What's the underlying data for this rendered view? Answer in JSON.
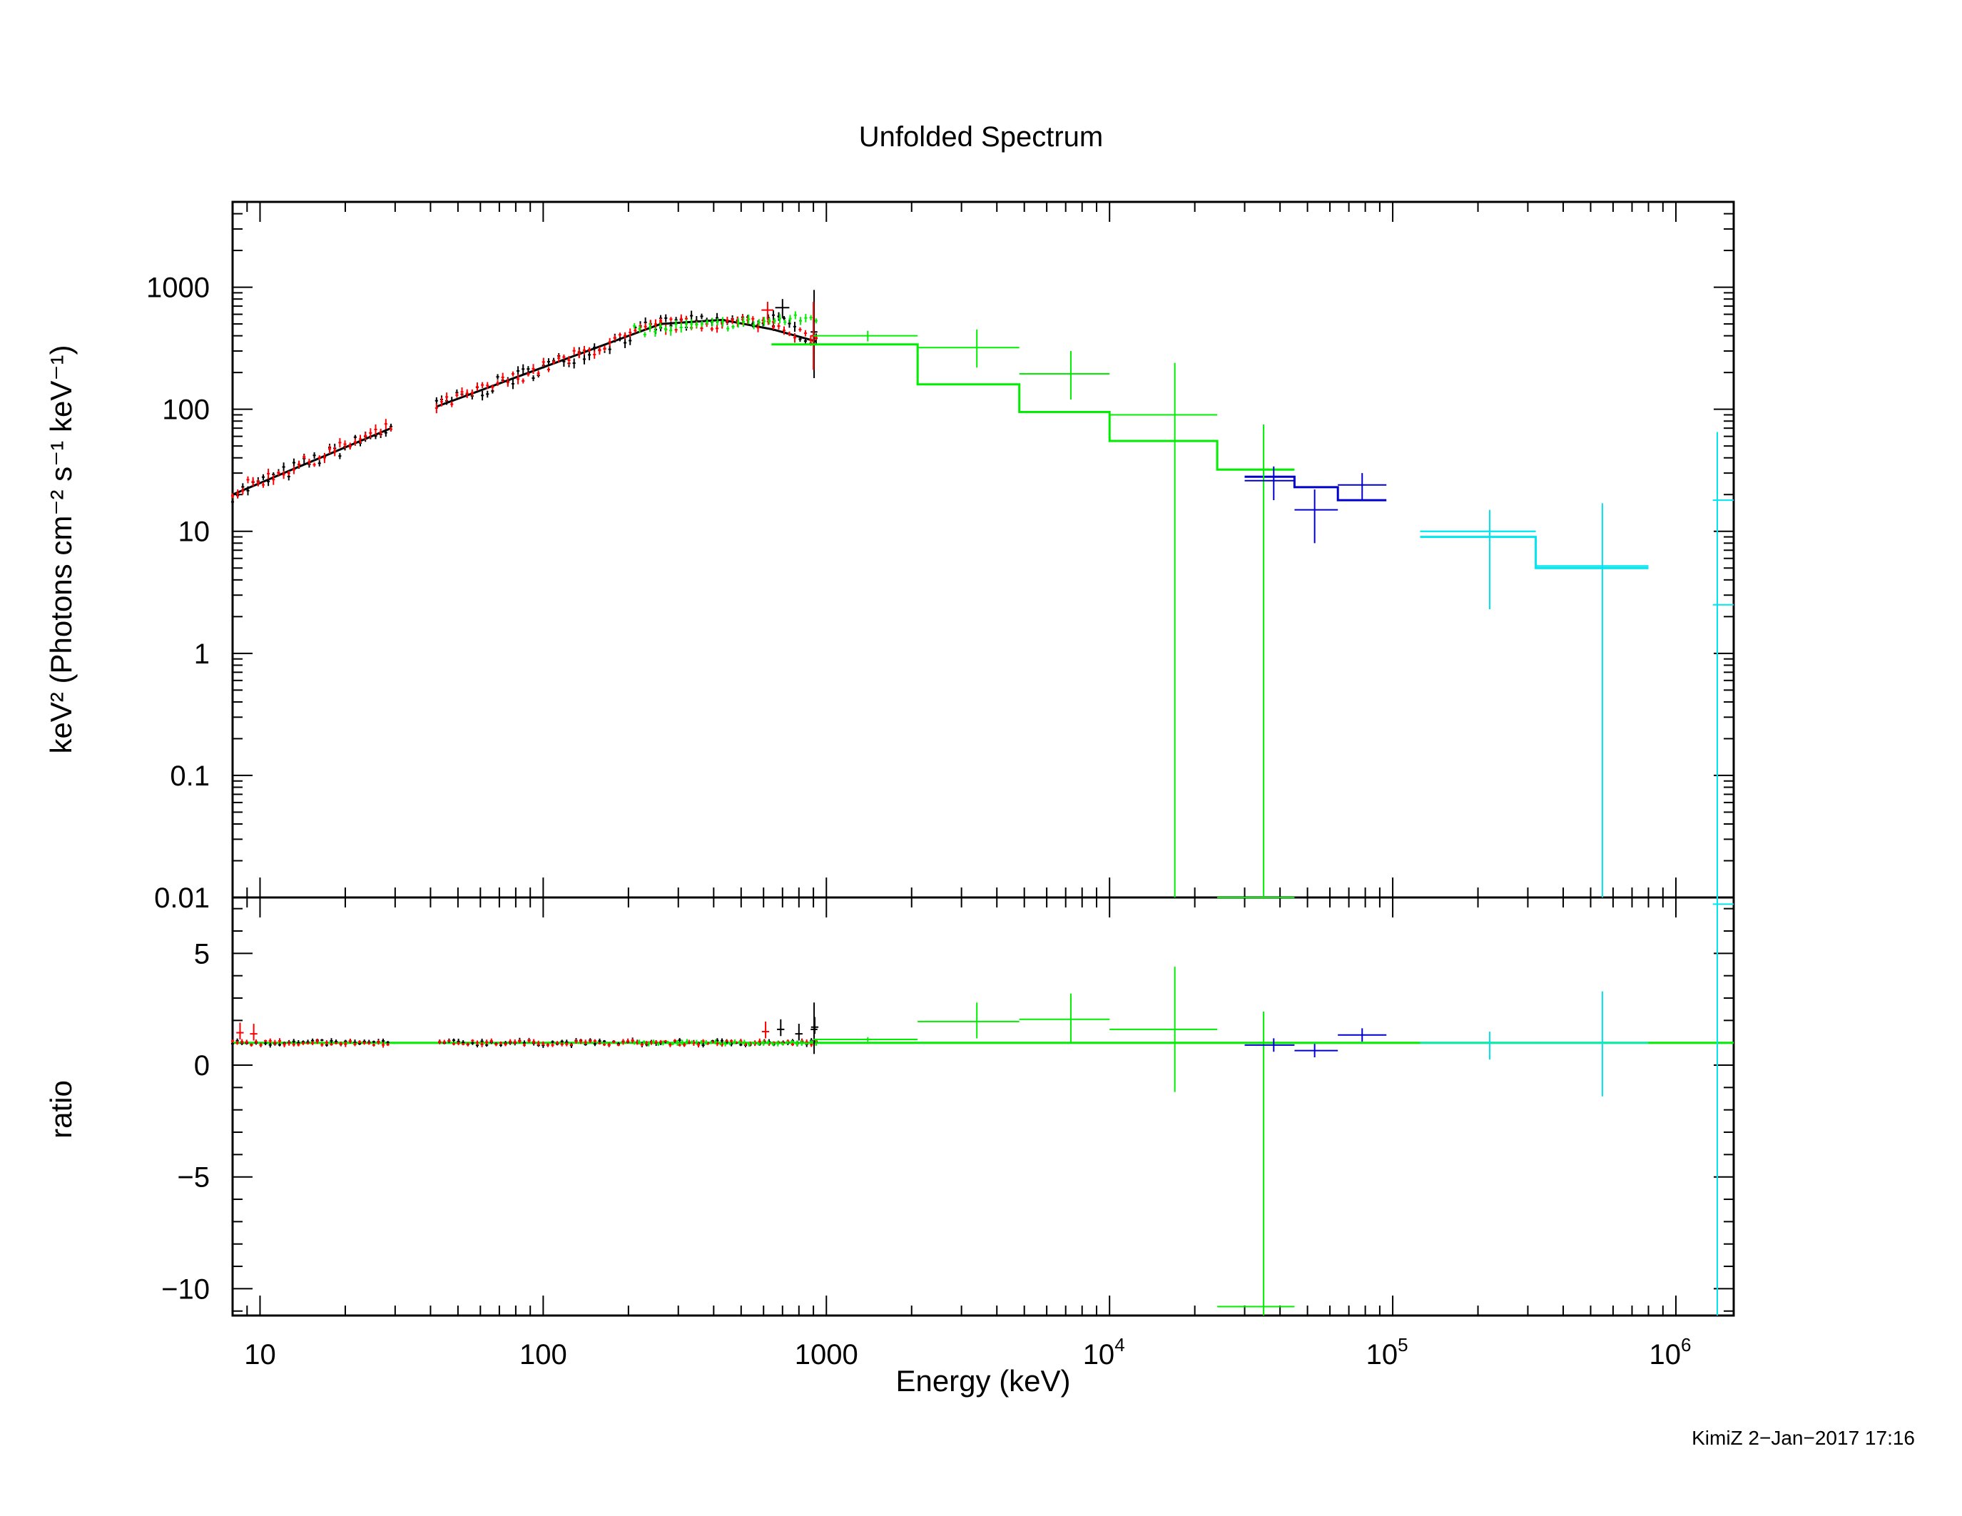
{
  "header": {
    "title": "Unfolded Spectrum",
    "footer": "KimiZ  2−Jan−2017 17:16"
  },
  "axes": {
    "xlabel": "Energy (keV)",
    "ylabel_top": "keV² (Photons cm⁻² s⁻¹ keV⁻¹)",
    "ylabel_bottom": "ratio",
    "x_tick_labels": [
      "10",
      "100",
      "1000",
      "10",
      "10",
      "10"
    ],
    "x_tick_exponents": [
      "",
      "",
      "",
      "4",
      "5",
      "6"
    ],
    "y_top_tick_labels": [
      "1000",
      "100",
      "10",
      "1",
      "0.1",
      "0.01"
    ],
    "y_bottom_tick_labels": [
      "5",
      "0",
      "−5",
      "−10"
    ]
  },
  "colors": {
    "black": "#000000",
    "red": "#ff0000",
    "green": "#00ee00",
    "blue": "#0000cc",
    "cyan": "#00e5ee"
  },
  "chart_data": {
    "type": "scatter",
    "xscale": "log",
    "xlim": [
      8,
      1600000
    ],
    "top_panel": {
      "yscale": "log",
      "ylim": [
        0.01,
        5000
      ],
      "model_steps": [
        {
          "color": "green",
          "points": [
            [
              640,
              340
            ],
            [
              2100,
              340
            ],
            [
              2100,
              160
            ],
            [
              4800,
              160
            ],
            [
              4800,
              95
            ],
            [
              10000,
              95
            ],
            [
              10000,
              55
            ],
            [
              24000,
              55
            ],
            [
              24000,
              32
            ],
            [
              45000,
              32
            ]
          ]
        },
        {
          "color": "blue",
          "points": [
            [
              30000,
              28
            ],
            [
              45000,
              28
            ],
            [
              45000,
              23
            ],
            [
              64000,
              23
            ],
            [
              64000,
              18
            ],
            [
              95000,
              18
            ]
          ]
        },
        {
          "color": "cyan",
          "points": [
            [
              125000,
              9
            ],
            [
              320000,
              9
            ],
            [
              320000,
              5
            ],
            [
              800000,
              5
            ]
          ]
        }
      ],
      "data_points": [
        {
          "color": "green",
          "x": 1400,
          "y": 400,
          "xlo": 900,
          "xhi": 2100,
          "ylo": 360,
          "yhi": 440
        },
        {
          "color": "green",
          "x": 3400,
          "y": 320,
          "xlo": 2100,
          "xhi": 4800,
          "ylo": 220,
          "yhi": 450
        },
        {
          "color": "green",
          "x": 7300,
          "y": 195,
          "xlo": 4800,
          "xhi": 10000,
          "ylo": 120,
          "yhi": 300
        },
        {
          "color": "green",
          "x": 17000,
          "y": 90,
          "xlo": 10000,
          "xhi": 24000,
          "ylo": 0.01,
          "yhi": 240
        },
        {
          "color": "green",
          "x": 35000,
          "y": 0.01,
          "xlo": 24000,
          "xhi": 45000,
          "ylo": 0.01,
          "yhi": 75
        },
        {
          "color": "blue",
          "x": 38000,
          "y": 26,
          "xlo": 30000,
          "xhi": 45000,
          "ylo": 18,
          "yhi": 34
        },
        {
          "color": "blue",
          "x": 53000,
          "y": 15,
          "xlo": 45000,
          "xhi": 64000,
          "ylo": 8,
          "yhi": 22
        },
        {
          "color": "blue",
          "x": 78000,
          "y": 24,
          "xlo": 64000,
          "xhi": 95000,
          "ylo": 18,
          "yhi": 30
        },
        {
          "color": "cyan",
          "x": 220000,
          "y": 10,
          "xlo": 125000,
          "xhi": 320000,
          "ylo": 2.3,
          "yhi": 15
        },
        {
          "color": "cyan",
          "x": 550000,
          "y": 5.2,
          "xlo": 320000,
          "xhi": 800000,
          "ylo": 0.01,
          "yhi": 17
        },
        {
          "color": "cyan",
          "x": 1400000,
          "y": 18,
          "xlo": 1350000,
          "xhi": 1600000,
          "ylo": 0.01,
          "yhi": 65
        },
        {
          "color": "cyan",
          "x": 1400000,
          "y": 2.5,
          "xlo": 1350000,
          "xhi": 1600000,
          "ylo": 0.01,
          "yhi": 3
        }
      ],
      "dense_series": [
        {
          "color": "black",
          "segments": [
            [
              8,
              20,
              29,
              70
            ],
            [
              42,
              105,
              260,
              500
            ],
            [
              260,
              500,
              650,
              540
            ],
            [
              650,
              540,
              920,
              370
            ]
          ],
          "spread": 0.06
        },
        {
          "color": "red",
          "segments": [
            [
              8,
              21,
              29,
              71
            ],
            [
              42,
              106,
              260,
              490
            ],
            [
              260,
              490,
              650,
              520
            ],
            [
              650,
              520,
              920,
              360
            ]
          ],
          "spread": 0.05
        },
        {
          "color": "green",
          "segments": [
            [
              210,
              440,
              920,
              560
            ]
          ],
          "spread": 0.04
        }
      ],
      "dense_model": [
        [
          8,
          20
        ],
        [
          29,
          70
        ],
        [
          42,
          105
        ],
        [
          260,
          500
        ],
        [
          430,
          540
        ],
        [
          650,
          450
        ],
        [
          920,
          360
        ]
      ]
    },
    "bottom_panel": {
      "yscale": "linear",
      "ylim": [
        -11.2,
        7.5
      ],
      "ratio_baseline": 1,
      "data_points": [
        {
          "color": "green",
          "x": 1400,
          "y": 1.15,
          "xlo": 900,
          "xhi": 2100,
          "ylo": 1.05,
          "yhi": 1.25
        },
        {
          "color": "green",
          "x": 3400,
          "y": 1.95,
          "xlo": 2100,
          "xhi": 4800,
          "ylo": 1.2,
          "yhi": 2.8
        },
        {
          "color": "green",
          "x": 7300,
          "y": 2.05,
          "xlo": 4800,
          "xhi": 10000,
          "ylo": 1.0,
          "yhi": 3.2
        },
        {
          "color": "green",
          "x": 17000,
          "y": 1.6,
          "xlo": 10000,
          "xhi": 24000,
          "ylo": -1.2,
          "yhi": 4.4
        },
        {
          "color": "green",
          "x": 35000,
          "y": -10.8,
          "xlo": 24000,
          "xhi": 45000,
          "ylo": -11.2,
          "yhi": 2.4
        },
        {
          "color": "blue",
          "x": 38000,
          "y": 0.9,
          "xlo": 30000,
          "xhi": 45000,
          "ylo": 0.6,
          "yhi": 1.2
        },
        {
          "color": "blue",
          "x": 53000,
          "y": 0.65,
          "xlo": 45000,
          "xhi": 64000,
          "ylo": 0.35,
          "yhi": 0.95
        },
        {
          "color": "blue",
          "x": 78000,
          "y": 1.35,
          "xlo": 64000,
          "xhi": 95000,
          "ylo": 1.05,
          "yhi": 1.65
        },
        {
          "color": "cyan",
          "x": 220000,
          "y": 1.0,
          "xlo": 125000,
          "xhi": 320000,
          "ylo": 0.25,
          "yhi": 1.5
        },
        {
          "color": "cyan",
          "x": 550000,
          "y": 1.0,
          "xlo": 320000,
          "xhi": 800000,
          "ylo": -1.4,
          "yhi": 3.3
        },
        {
          "color": "cyan",
          "x": 1400000,
          "y": 7.2,
          "xlo": 1350000,
          "xhi": 1600000,
          "ylo": -11.2,
          "yhi": 7.5
        }
      ],
      "dense_series": [
        {
          "color": "black",
          "range": [
            8,
            920
          ],
          "base": 1.0,
          "spread": 0.12,
          "tail": [
            [
              690,
              1.6
            ],
            [
              800,
              1.4
            ],
            [
              910,
              1.7
            ]
          ]
        },
        {
          "color": "red",
          "range": [
            8,
            920
          ],
          "base": 1.0,
          "spread": 0.1,
          "tail": [
            [
              8.5,
              1.45
            ],
            [
              9.5,
              1.4
            ],
            [
              610,
              1.5
            ]
          ]
        },
        {
          "color": "green",
          "range": [
            210,
            920
          ],
          "base": 1.0,
          "spread": 0.06,
          "tail": []
        }
      ]
    }
  }
}
